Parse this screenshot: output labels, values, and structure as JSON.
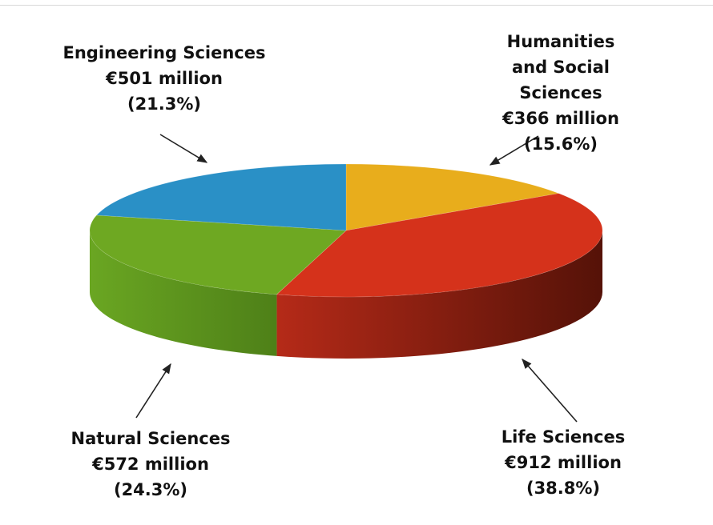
{
  "chart_data": {
    "type": "pie3d",
    "categories": [
      "Humanities and Social Sciences",
      "Life Sciences",
      "Natural Sciences",
      "Engineering Sciences"
    ],
    "values": [
      366,
      912,
      572,
      501
    ],
    "value_labels": [
      "€366 million",
      "€912 million",
      "€572 million",
      "€501 million"
    ],
    "shares": [
      15.6,
      38.8,
      24.3,
      21.3
    ],
    "share_labels": [
      "(15.6%)",
      "(38.8%)",
      "(24.3%)",
      "(21.3%)"
    ],
    "colors": [
      "#e8ad1c",
      "#d5321b",
      "#6ea822",
      "#2a90c6"
    ]
  }
}
